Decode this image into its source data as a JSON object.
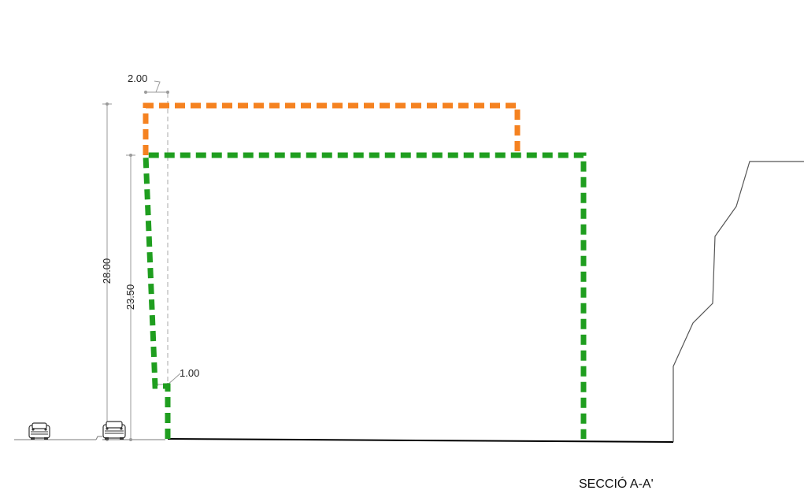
{
  "section_title": "SECCIÓ A-A'",
  "dimensions": {
    "total_height": "28.00",
    "green_height": "23.50",
    "top_offset": "2.00",
    "bottom_offset": "1.00"
  },
  "colors": {
    "orange_outline": "#f58220",
    "green_outline": "#1f9e1f",
    "dimension_line": "#9a9a9a",
    "ground_line": "#000000",
    "terrain_line": "#555555"
  },
  "icons": {
    "vehicle_left": "car-front-icon",
    "vehicle_right": "car-front-icon"
  }
}
